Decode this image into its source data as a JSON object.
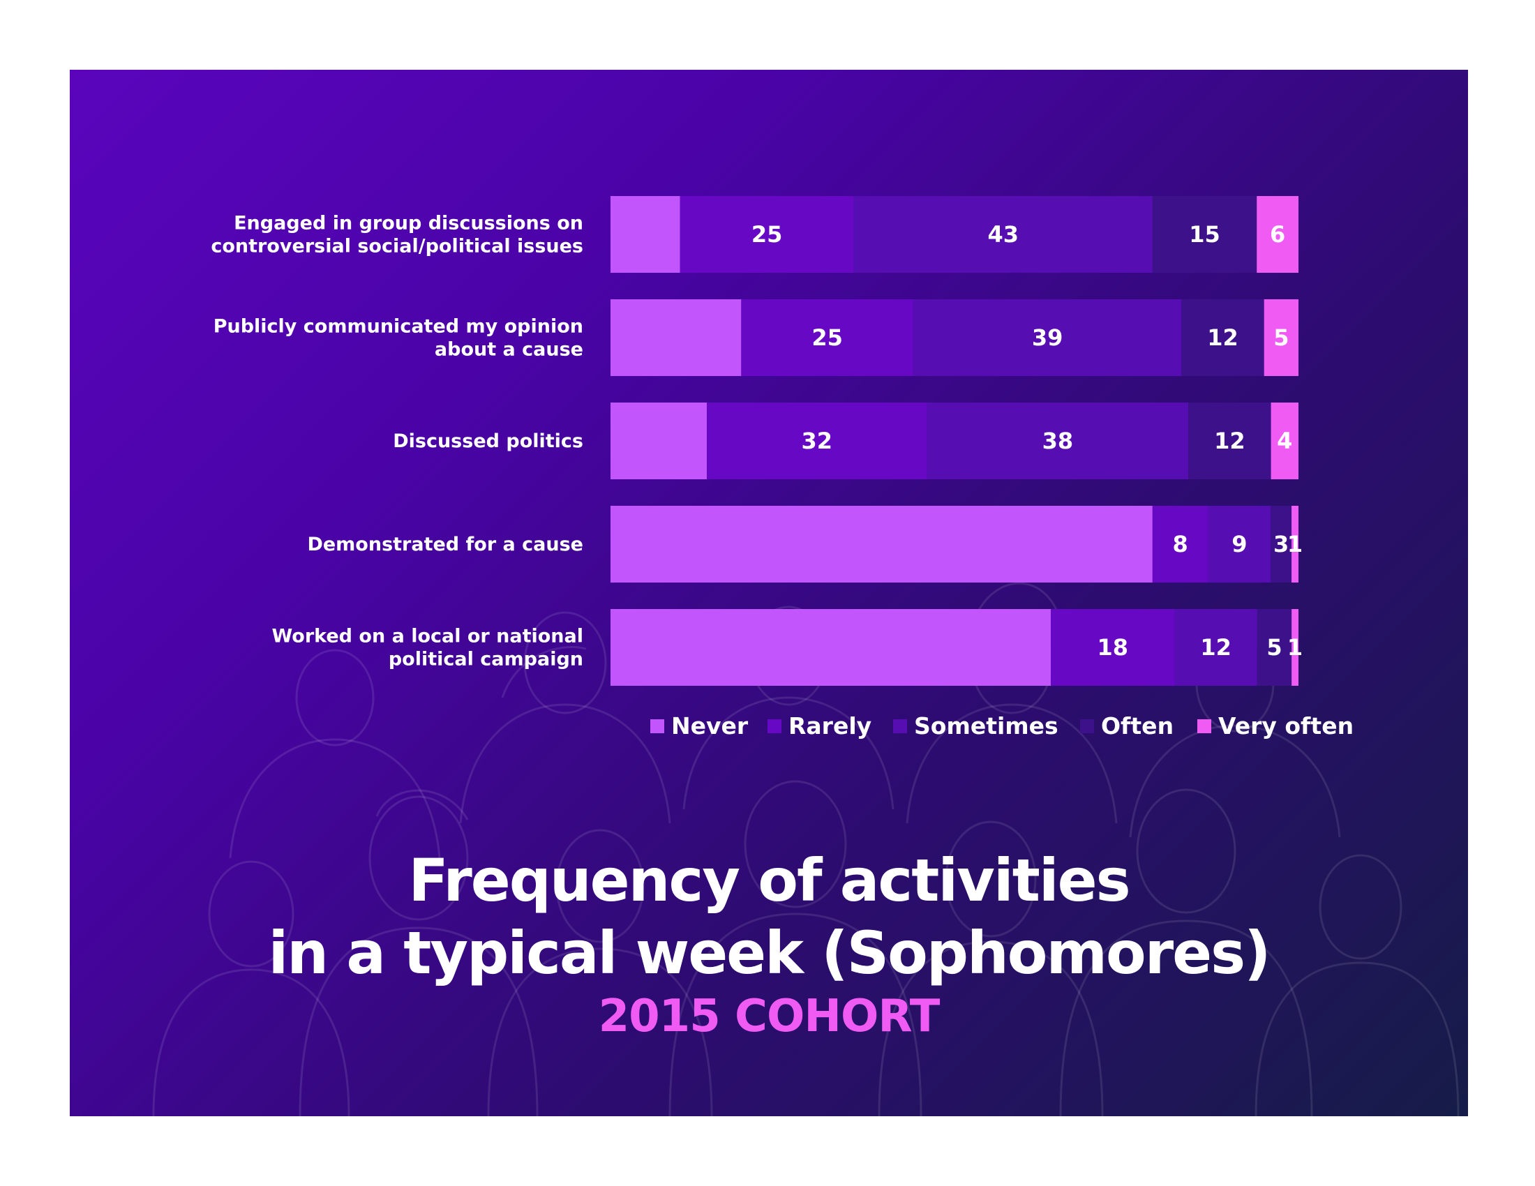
{
  "chart_data": {
    "type": "bar",
    "orientation": "horizontal",
    "stacked": true,
    "title": "Frequency of activities in a typical week (Sophomores)",
    "title_lines": [
      "Frequency of activities",
      "in a typical week (Sophomores)"
    ],
    "subtitle": "2015 COHORT",
    "xlabel": "",
    "ylabel": "",
    "xlim": [
      0,
      100
    ],
    "grid": false,
    "legend_position": "bottom",
    "categories": [
      [
        "Engaged in group discussions on",
        "controversial social/political issues"
      ],
      [
        "Publicly communicated my opinion",
        "about a cause"
      ],
      [
        "Discussed politics"
      ],
      [
        "Demonstrated for a cause"
      ],
      [
        "Worked on a local or national",
        "political campaign"
      ]
    ],
    "series": [
      {
        "name": "Never",
        "color": "#c355fc",
        "values": [
          10,
          19,
          14,
          78,
          64
        ],
        "show_labels": false
      },
      {
        "name": "Rarely",
        "color": "#6608c4",
        "values": [
          25,
          25,
          32,
          8,
          18
        ],
        "show_labels": true
      },
      {
        "name": "Sometimes",
        "color": "#560eb2",
        "values": [
          43,
          39,
          38,
          9,
          12
        ],
        "show_labels": true
      },
      {
        "name": "Often",
        "color": "#3d118a",
        "values": [
          15,
          12,
          12,
          3,
          5
        ],
        "show_labels": true
      },
      {
        "name": "Very often",
        "color": "#f05cf3",
        "values": [
          6,
          5,
          4,
          1,
          1
        ],
        "show_labels": true
      }
    ],
    "colors": {
      "accent": "#f05cf3",
      "title": "#ffffff"
    }
  }
}
